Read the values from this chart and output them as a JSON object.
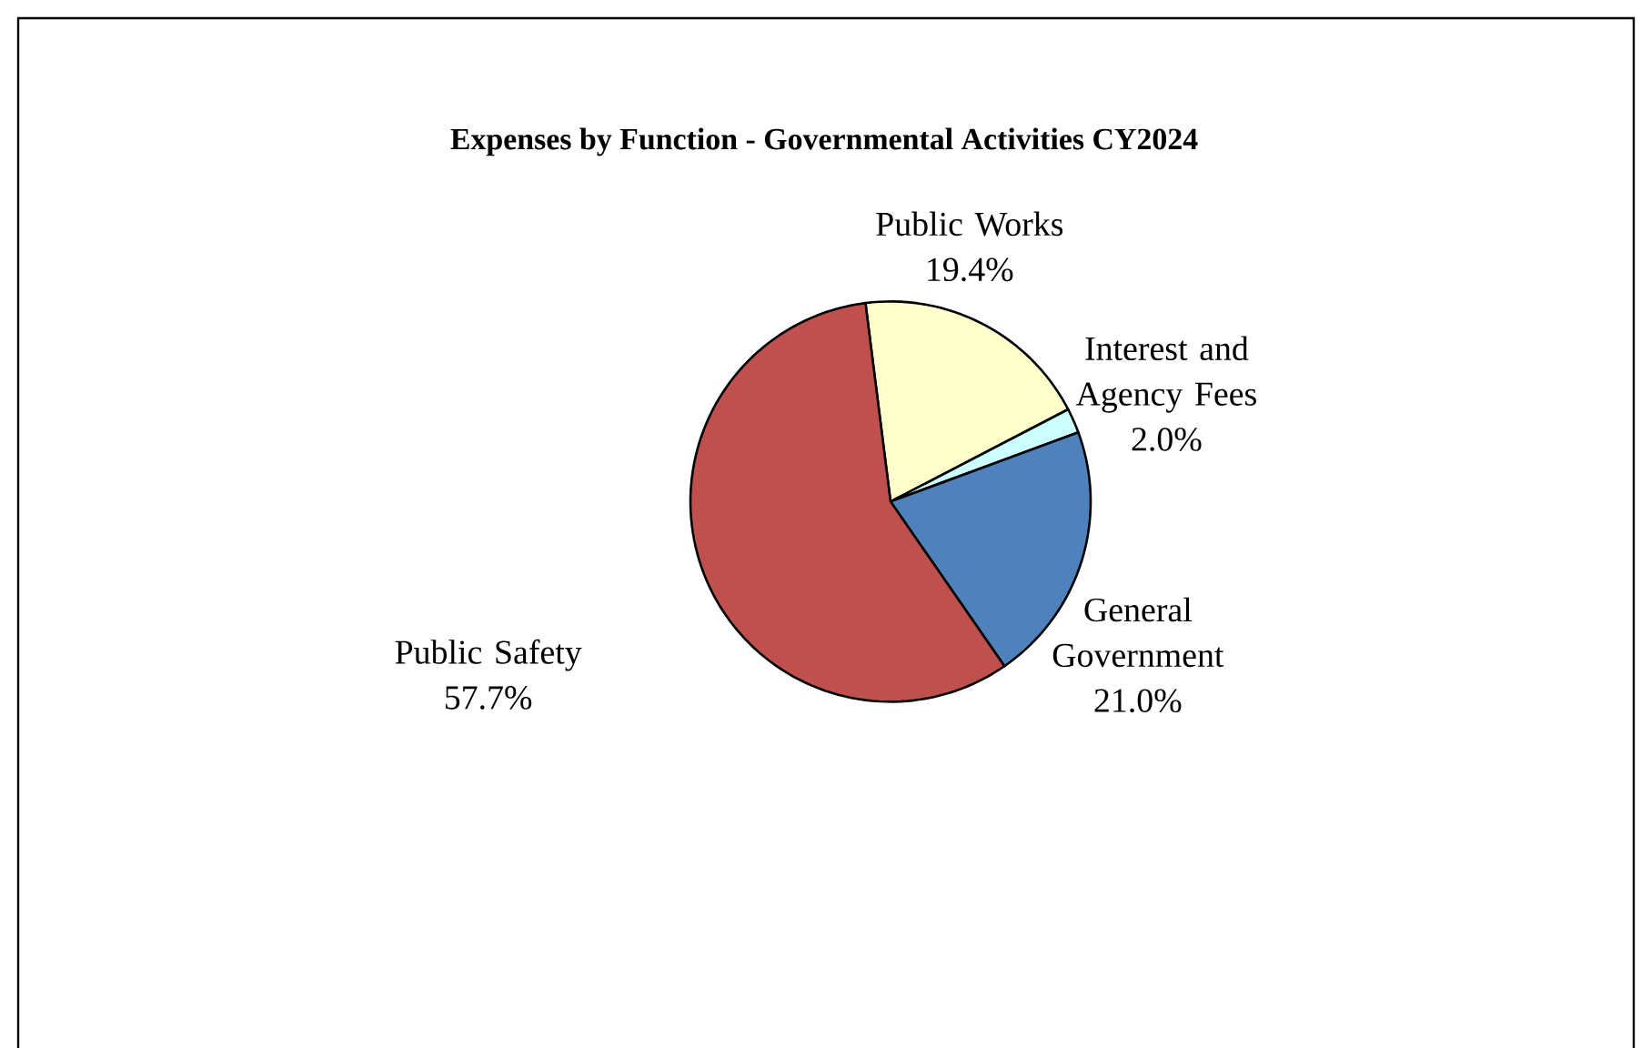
{
  "chart_data": {
    "type": "pie",
    "title": "Expenses by Function - Governmental Activities CY2024",
    "categories": [
      "Public Works",
      "Interest and Agency Fees",
      "General Government",
      "Public Safety"
    ],
    "values": [
      19.4,
      2.0,
      21.0,
      57.7
    ],
    "value_labels": [
      "19.4%",
      "2.0%",
      "21.0%",
      "57.7%"
    ],
    "colors": [
      "#ffffcc",
      "#ccffff",
      "#4f81bd",
      "#c0504d"
    ]
  }
}
